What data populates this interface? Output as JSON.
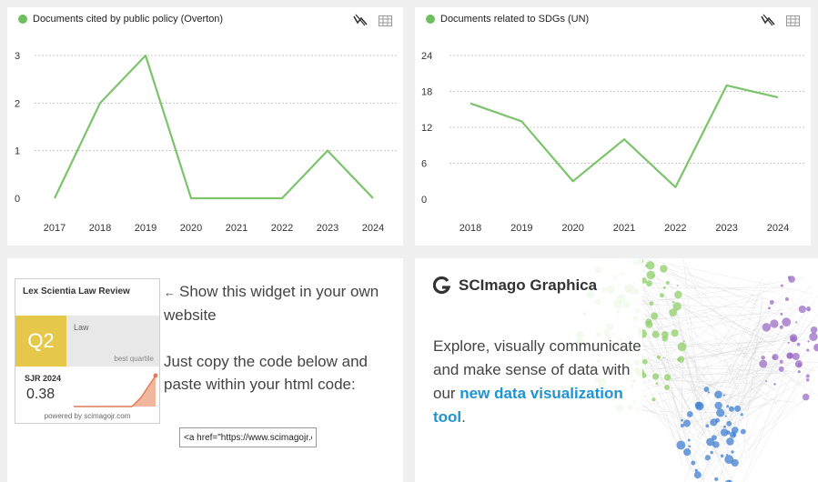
{
  "overton_chart": {
    "title": "Documents cited by public policy (Overton)",
    "icons": [
      "line-chart-icon",
      "table-icon"
    ],
    "chart_data": {
      "type": "line",
      "x": [
        "2017",
        "2018",
        "2019",
        "2020",
        "2021",
        "2022",
        "2023",
        "2024"
      ],
      "series": [
        {
          "values": [
            0,
            2,
            3,
            0,
            0,
            0,
            1,
            0
          ]
        }
      ],
      "y_ticks": [
        "0",
        "1",
        "2",
        "3"
      ],
      "ylim": [
        0,
        3
      ],
      "color": "#7cc36b",
      "grid": "dotted horizontal"
    }
  },
  "sdg_chart": {
    "title": "Documents related to SDGs (UN)",
    "icons": [
      "line-chart-icon",
      "table-icon"
    ],
    "chart_data": {
      "type": "line",
      "x": [
        "2018",
        "2019",
        "2020",
        "2021",
        "2022",
        "2023",
        "2024"
      ],
      "series": [
        {
          "values": [
            16,
            13,
            3,
            10,
            2,
            19,
            17
          ]
        }
      ],
      "y_ticks": [
        "0",
        "6",
        "12",
        "18",
        "24"
      ],
      "ylim": [
        0,
        24
      ],
      "color": "#7cc36b",
      "grid": "dotted horizontal"
    }
  },
  "widget": {
    "journal_name": "Lex Scientia Law Review",
    "quartile": "Q2",
    "category": "Law",
    "best_quartile_label": "best quartile",
    "sjr_label": "SJR 2024",
    "sjr_value": "0.38",
    "powered_by": "powered by scimagojr.com",
    "arrow": "←",
    "text_1": "Show this widget in your own website",
    "text_2": "Just copy the code below and paste within your html code:",
    "code_value": "<a href=\"https://www.scimagojr.com/journalsearch.php",
    "quartile_color": "#e5c84a",
    "spark_color": "#e07b53"
  },
  "graphica": {
    "logo_text": "SCImago Graphica",
    "text_before": "Explore, visually communicate and make sense of data with our ",
    "link_text": "new data visualization tool",
    "text_after": ".",
    "link_color": "#1e94d2"
  }
}
